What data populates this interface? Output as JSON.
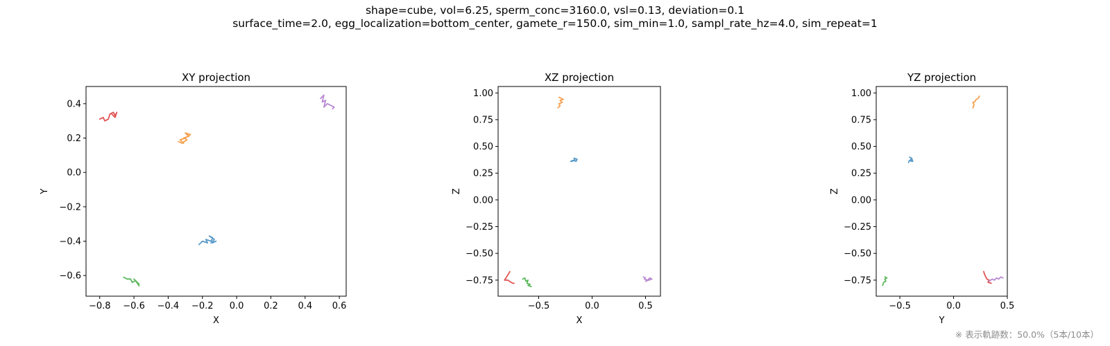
{
  "figure": {
    "suptitle_line1": "shape=cube, vol=6.25, sperm_conc=3160.0, vsl=0.13, deviation=0.1",
    "suptitle_line2": "surface_time=2.0, egg_localization=bottom_center, gamete_r=150.0, sim_min=1.0, sampl_rate_hz=4.0, sim_repeat=1",
    "footnote": "※ 表示軌跡数：50.0%（5本/10本）"
  },
  "colors": {
    "blue": "#5b9bc8",
    "orange": "#f5a04f",
    "green": "#5cb85c",
    "red": "#e05555",
    "purple": "#b889d3"
  },
  "chart_data": [
    {
      "type": "line",
      "title": "XY projection",
      "xlabel": "X",
      "ylabel": "Y",
      "xlim": [
        -0.88,
        0.64
      ],
      "ylim": [
        -0.72,
        0.5
      ],
      "xticks": [
        -0.8,
        -0.6,
        -0.4,
        -0.2,
        0.0,
        0.2,
        0.4,
        0.6
      ],
      "xtick_labels": [
        "−0.8",
        "−0.6",
        "−0.4",
        "−0.2",
        "0.0",
        "0.2",
        "0.4",
        "0.6"
      ],
      "yticks": [
        -0.6,
        -0.4,
        -0.2,
        0.0,
        0.2,
        0.4
      ],
      "ytick_labels": [
        "−0.6",
        "−0.4",
        "−0.2",
        "0.0",
        "0.2",
        "0.4"
      ],
      "grid": false,
      "series": [
        {
          "color": "blue",
          "x": [
            -0.22,
            -0.2,
            -0.17,
            -0.18,
            -0.15,
            -0.14,
            -0.16,
            -0.13,
            -0.15,
            -0.12,
            -0.14
          ],
          "y": [
            -0.42,
            -0.4,
            -0.41,
            -0.39,
            -0.4,
            -0.38,
            -0.37,
            -0.39,
            -0.41,
            -0.4,
            -0.41
          ]
        },
        {
          "color": "orange",
          "x": [
            -0.34,
            -0.32,
            -0.29,
            -0.31,
            -0.28,
            -0.3,
            -0.27,
            -0.3,
            -0.33,
            -0.31
          ],
          "y": [
            0.18,
            0.17,
            0.19,
            0.2,
            0.21,
            0.23,
            0.22,
            0.2,
            0.19,
            0.17
          ]
        },
        {
          "color": "green",
          "x": [
            -0.66,
            -0.64,
            -0.62,
            -0.61,
            -0.59,
            -0.6,
            -0.58,
            -0.57,
            -0.59,
            -0.57
          ],
          "y": [
            -0.61,
            -0.62,
            -0.62,
            -0.64,
            -0.63,
            -0.62,
            -0.64,
            -0.66,
            -0.63,
            -0.65
          ]
        },
        {
          "color": "red",
          "x": [
            -0.8,
            -0.78,
            -0.77,
            -0.75,
            -0.74,
            -0.72,
            -0.71,
            -0.7,
            -0.71,
            -0.73
          ],
          "y": [
            0.31,
            0.32,
            0.3,
            0.31,
            0.34,
            0.35,
            0.33,
            0.35,
            0.32,
            0.34
          ]
        },
        {
          "color": "purple",
          "x": [
            0.49,
            0.51,
            0.5,
            0.52,
            0.51,
            0.53,
            0.55,
            0.57,
            0.56
          ],
          "y": [
            0.43,
            0.45,
            0.41,
            0.42,
            0.38,
            0.4,
            0.39,
            0.38,
            0.37
          ]
        }
      ]
    },
    {
      "type": "line",
      "title": "XZ projection",
      "xlabel": "X",
      "ylabel": "Z",
      "xlim": [
        -0.88,
        0.64
      ],
      "ylim": [
        -0.9,
        1.06
      ],
      "xticks": [
        -0.5,
        0.0,
        0.5
      ],
      "xtick_labels": [
        "−0.5",
        "0.0",
        "0.5"
      ],
      "yticks": [
        -0.75,
        -0.5,
        -0.25,
        0.0,
        0.25,
        0.5,
        0.75,
        1.0
      ],
      "ytick_labels": [
        "−0.75",
        "−0.50",
        "−0.25",
        "0.00",
        "0.25",
        "0.50",
        "0.75",
        "1.00"
      ],
      "grid": false,
      "series": [
        {
          "color": "blue",
          "x": [
            -0.2,
            -0.18,
            -0.15,
            -0.14,
            -0.17,
            -0.16,
            -0.19
          ],
          "y": [
            0.36,
            0.37,
            0.36,
            0.38,
            0.39,
            0.37,
            0.36
          ]
        },
        {
          "color": "orange",
          "x": [
            -0.32,
            -0.3,
            -0.31,
            -0.28,
            -0.3,
            -0.27,
            -0.29,
            -0.31
          ],
          "y": [
            0.86,
            0.88,
            0.9,
            0.91,
            0.93,
            0.94,
            0.95,
            0.96
          ]
        },
        {
          "color": "green",
          "x": [
            -0.65,
            -0.63,
            -0.62,
            -0.6,
            -0.61,
            -0.58,
            -0.6,
            -0.57
          ],
          "y": [
            -0.74,
            -0.73,
            -0.76,
            -0.75,
            -0.78,
            -0.79,
            -0.8,
            -0.81
          ]
        },
        {
          "color": "red",
          "x": [
            -0.77,
            -0.8,
            -0.82,
            -0.79,
            -0.76,
            -0.74,
            -0.73
          ],
          "y": [
            -0.67,
            -0.72,
            -0.75,
            -0.75,
            -0.77,
            -0.78,
            -0.78
          ]
        },
        {
          "color": "purple",
          "x": [
            0.48,
            0.5,
            0.49,
            0.52,
            0.54,
            0.56,
            0.5
          ],
          "y": [
            -0.72,
            -0.73,
            -0.74,
            -0.75,
            -0.73,
            -0.74,
            -0.76
          ]
        }
      ]
    },
    {
      "type": "line",
      "title": "YZ projection",
      "xlabel": "Y",
      "ylabel": "Z",
      "xlim": [
        -0.72,
        0.5
      ],
      "ylim": [
        -0.9,
        1.06
      ],
      "xticks": [
        -0.5,
        0.0,
        0.5
      ],
      "xtick_labels": [
        "−0.5",
        "0.0",
        "0.5"
      ],
      "yticks": [
        -0.75,
        -0.5,
        -0.25,
        0.0,
        0.25,
        0.5,
        0.75,
        1.0
      ],
      "ytick_labels": [
        "−0.75",
        "−0.50",
        "−0.25",
        "0.00",
        "0.25",
        "0.50",
        "0.75",
        "1.00"
      ],
      "grid": false,
      "series": [
        {
          "color": "blue",
          "x": [
            -0.42,
            -0.41,
            -0.39,
            -0.4,
            -0.38,
            -0.39,
            -0.41
          ],
          "y": [
            0.35,
            0.37,
            0.36,
            0.38,
            0.36,
            0.39,
            0.4
          ]
        },
        {
          "color": "orange",
          "x": [
            0.18,
            0.19,
            0.18,
            0.2,
            0.21,
            0.23,
            0.24
          ],
          "y": [
            0.86,
            0.89,
            0.91,
            0.92,
            0.94,
            0.95,
            0.97
          ]
        },
        {
          "color": "green",
          "x": [
            -0.66,
            -0.65,
            -0.63,
            -0.64,
            -0.62,
            -0.64
          ],
          "y": [
            -0.8,
            -0.77,
            -0.76,
            -0.74,
            -0.73,
            -0.72
          ]
        },
        {
          "color": "red",
          "x": [
            0.28,
            0.29,
            0.31,
            0.33,
            0.32,
            0.35
          ],
          "y": [
            -0.67,
            -0.7,
            -0.74,
            -0.75,
            -0.77,
            -0.78
          ]
        },
        {
          "color": "purple",
          "x": [
            0.33,
            0.36,
            0.38,
            0.4,
            0.42,
            0.44,
            0.46
          ],
          "y": [
            -0.76,
            -0.74,
            -0.75,
            -0.73,
            -0.74,
            -0.72,
            -0.73
          ]
        }
      ]
    }
  ]
}
